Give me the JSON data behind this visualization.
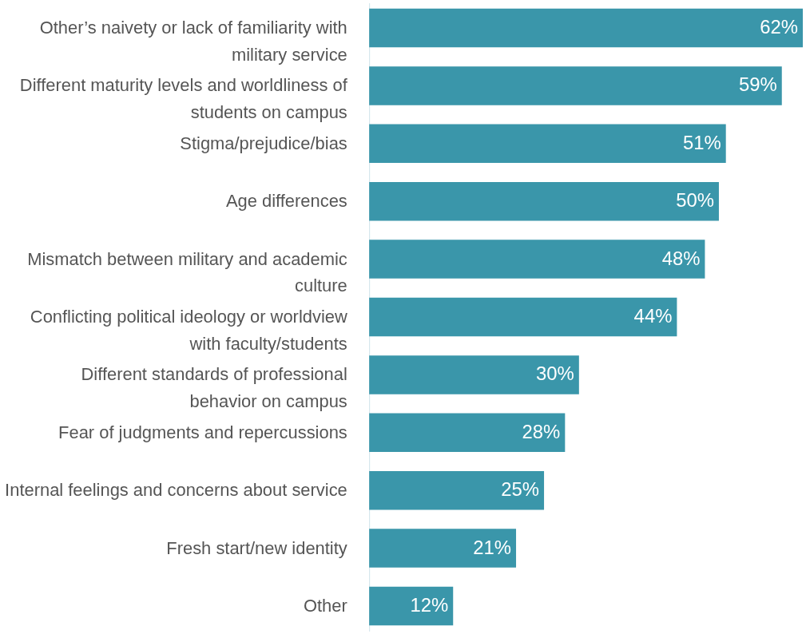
{
  "chart_data": {
    "type": "bar",
    "orientation": "horizontal",
    "categories": [
      "Other’s naivety or lack of familiarity with\nmilitary service",
      "Different maturity levels and worldliness of\nstudents on campus",
      "Stigma/prejudice/bias",
      "Age differences",
      "Mismatch between military and academic\nculture",
      "Conflicting political ideology or worldview\nwith faculty/students",
      "Different standards of professional\nbehavior on campus",
      "Fear of judgments and repercussions",
      "Internal feelings and concerns about service",
      "Fresh start/new identity",
      "Other"
    ],
    "values": [
      62,
      59,
      51,
      50,
      48,
      44,
      30,
      28,
      25,
      21,
      12
    ],
    "value_labels": [
      "62%",
      "59%",
      "51%",
      "50%",
      "48%",
      "44%",
      "30%",
      "28%",
      "25%",
      "21%",
      "12%"
    ],
    "color": "#3a96aa"
  }
}
